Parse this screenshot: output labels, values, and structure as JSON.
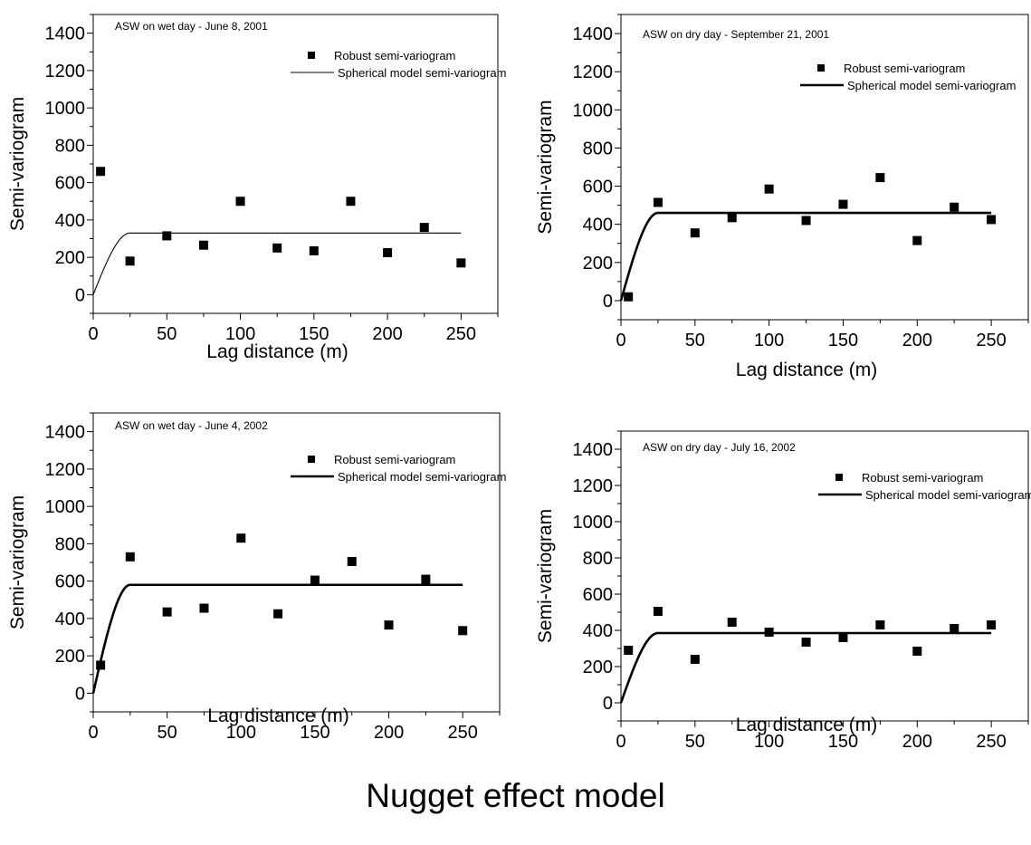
{
  "figure": {
    "caption": "Nugget effect model"
  },
  "chart_data": [
    {
      "type": "scatter",
      "title": "ASW on wet day - June 8, 2001",
      "xlabel": "Lag distance (m)",
      "ylabel": "Semi-variogram",
      "xlim": [
        0,
        275
      ],
      "ylim": [
        -100,
        1500
      ],
      "xticks": [
        0,
        50,
        100,
        150,
        200,
        250
      ],
      "yticks": [
        0,
        200,
        400,
        600,
        800,
        1000,
        1200,
        1400
      ],
      "x_ticklabels": [
        "0",
        "50",
        "100",
        "150",
        "200",
        "250"
      ],
      "y_ticklabels": [
        "0",
        "200",
        "400",
        "600",
        "800",
        "1000",
        "1200",
        "1400"
      ],
      "legend_position": "top-right",
      "series": [
        {
          "name": "Robust semi-variogram",
          "marker": "square",
          "x": [
            5,
            25,
            50,
            75,
            100,
            125,
            150,
            175,
            200,
            225,
            250
          ],
          "y": [
            660,
            180,
            315,
            265,
            500,
            250,
            235,
            500,
            225,
            360,
            170
          ]
        },
        {
          "name": "Spherical model semi-variogram",
          "line": "thin",
          "model": {
            "nugget": 0,
            "sill": 330,
            "range": 25,
            "xmax": 250
          }
        }
      ]
    },
    {
      "type": "scatter",
      "title": "ASW on dry day - September 21, 2001",
      "xlabel": "Lag distance (m)",
      "ylabel": "Semi-variogram",
      "xlim": [
        0,
        275
      ],
      "ylim": [
        -100,
        1500
      ],
      "xticks": [
        0,
        50,
        100,
        150,
        200,
        250
      ],
      "yticks": [
        0,
        200,
        400,
        600,
        800,
        1000,
        1200,
        1400
      ],
      "x_ticklabels": [
        "0",
        "50",
        "100",
        "150",
        "200",
        "250"
      ],
      "y_ticklabels": [
        "0",
        "200",
        "400",
        "600",
        "800",
        "1000",
        "1200",
        "1400"
      ],
      "legend_position": "top-right",
      "series": [
        {
          "name": "Robust semi-variogram",
          "marker": "square",
          "x": [
            5,
            25,
            50,
            75,
            100,
            125,
            150,
            175,
            200,
            225,
            250
          ],
          "y": [
            20,
            515,
            355,
            435,
            585,
            420,
            505,
            645,
            315,
            490,
            425
          ]
        },
        {
          "name": "Spherical model semi-variogram",
          "line": "thick",
          "model": {
            "nugget": 0,
            "sill": 460,
            "range": 25,
            "xmax": 250
          }
        }
      ]
    },
    {
      "type": "scatter",
      "title": "ASW on wet day - June 4, 2002",
      "xlabel": "Lag distance (m)",
      "ylabel": "Semi-variogram",
      "xlim": [
        0,
        275
      ],
      "ylim": [
        -100,
        1500
      ],
      "xticks": [
        0,
        50,
        100,
        150,
        200,
        250
      ],
      "yticks": [
        0,
        200,
        400,
        600,
        800,
        1000,
        1200,
        1400
      ],
      "x_ticklabels": [
        "0",
        "50",
        "100",
        "150",
        "200",
        "250"
      ],
      "y_ticklabels": [
        "0",
        "200",
        "400",
        "600",
        "800",
        "1000",
        "1200",
        "1400"
      ],
      "legend_position": "top-right",
      "series": [
        {
          "name": "Robust semi-variogram",
          "marker": "square",
          "x": [
            5,
            25,
            50,
            75,
            100,
            125,
            150,
            175,
            200,
            225,
            250
          ],
          "y": [
            150,
            730,
            435,
            455,
            830,
            425,
            605,
            705,
            365,
            610,
            335
          ]
        },
        {
          "name": "Spherical model semi-variogram",
          "line": "thick",
          "model": {
            "nugget": 0,
            "sill": 580,
            "range": 25,
            "xmax": 250
          }
        }
      ]
    },
    {
      "type": "scatter",
      "title": "ASW on dry day - July 16, 2002",
      "xlabel": "Lag distance (m)",
      "ylabel": "Semi-variogram",
      "xlim": [
        0,
        275
      ],
      "ylim": [
        -100,
        1500
      ],
      "xticks": [
        0,
        50,
        100,
        150,
        200,
        250
      ],
      "yticks": [
        0,
        200,
        400,
        600,
        800,
        1000,
        1200,
        1400
      ],
      "x_ticklabels": [
        "0",
        "50",
        "100",
        "150",
        "200",
        "250"
      ],
      "y_ticklabels": [
        "0",
        "200",
        "400",
        "600",
        "800",
        "1000",
        "1200",
        "1400"
      ],
      "legend_position": "top-right",
      "series": [
        {
          "name": "Robust semi-variogram",
          "marker": "square",
          "x": [
            5,
            25,
            50,
            75,
            100,
            125,
            150,
            175,
            200,
            225,
            250
          ],
          "y": [
            290,
            505,
            240,
            445,
            390,
            335,
            360,
            430,
            285,
            410,
            430
          ]
        },
        {
          "name": "Spherical model semi-variogram",
          "line": "thick",
          "model": {
            "nugget": 0,
            "sill": 385,
            "range": 25,
            "xmax": 250
          }
        }
      ]
    }
  ]
}
